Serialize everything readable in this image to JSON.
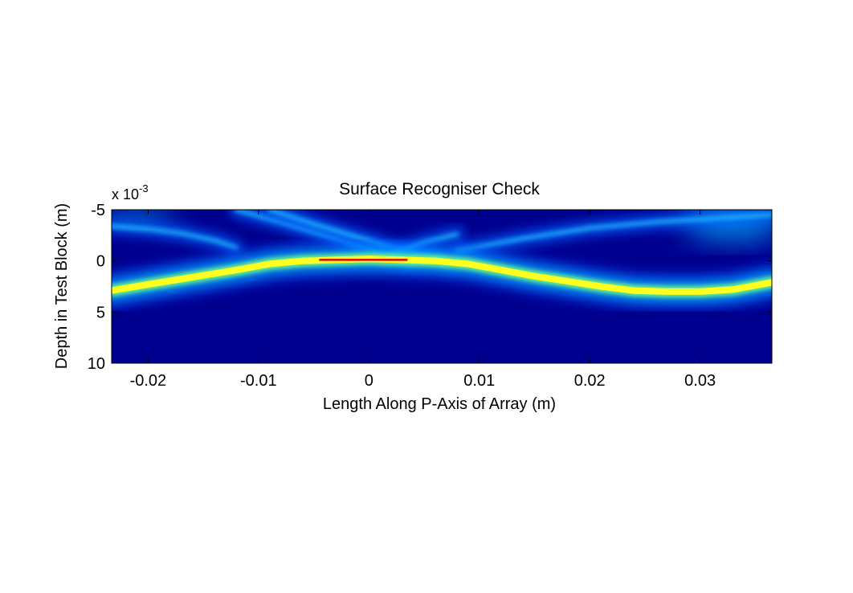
{
  "chart_data": {
    "type": "heatmap",
    "title": "Surface Recogniser Check",
    "xlabel": "Length Along P-Axis of Array (m)",
    "ylabel": "Depth in Test Block (m)",
    "y_multiplier": {
      "base": "x 10",
      "exponent": "-3"
    },
    "xlim": [
      -0.0233,
      0.0365
    ],
    "ylim": [
      -5,
      10
    ],
    "y_reversed": true,
    "colormap": "jet",
    "grid": false,
    "x_ticks": [
      {
        "value": -0.02,
        "label": "-0.02"
      },
      {
        "value": -0.01,
        "label": "-0.01"
      },
      {
        "value": 0,
        "label": "0"
      },
      {
        "value": 0.01,
        "label": "0.01"
      },
      {
        "value": 0.02,
        "label": "0.02"
      },
      {
        "value": 0.03,
        "label": "0.03"
      }
    ],
    "y_ticks": [
      {
        "value": -5,
        "label": "-5"
      },
      {
        "value": 0,
        "label": "0"
      },
      {
        "value": 5,
        "label": "5"
      },
      {
        "value": 10,
        "label": "10"
      }
    ],
    "surface_line": {
      "x": [
        -0.0233,
        -0.02,
        -0.016,
        -0.012,
        -0.009,
        -0.006,
        -0.003,
        0,
        0.003,
        0.006,
        0.009,
        0.012,
        0.015,
        0.018,
        0.021,
        0.024,
        0.027,
        0.03,
        0.033,
        0.0365
      ],
      "y": [
        2.9,
        2.3,
        1.6,
        0.9,
        0.3,
        0.0,
        -0.1,
        -0.2,
        -0.1,
        0.0,
        0.3,
        0.9,
        1.5,
        2.0,
        2.5,
        2.9,
        3.0,
        3.0,
        2.8,
        2.1
      ]
    },
    "detected_segment": {
      "x": [
        -0.0045,
        0.0035
      ],
      "y": [
        -0.1,
        -0.1
      ]
    },
    "artifact_bands": [
      {
        "x": [
          -0.012,
          -0.008,
          -0.004,
          0.0,
          0.004
        ],
        "y": [
          -5.0,
          -3.8,
          -2.5,
          -1.2,
          0.0
        ]
      },
      {
        "x": [
          -0.009,
          -0.005,
          -0.001,
          0.003,
          0.007
        ],
        "y": [
          -5.0,
          -3.6,
          -2.3,
          -1.0,
          0.0
        ]
      },
      {
        "x": [
          0.002,
          0.005,
          0.008
        ],
        "y": [
          -0.6,
          -1.8,
          -2.6
        ]
      },
      {
        "x": [
          -0.0233,
          -0.02,
          -0.017,
          -0.014,
          -0.012
        ],
        "y": [
          -3.4,
          -3.1,
          -2.7,
          -2.0,
          -1.3
        ]
      },
      {
        "x": [
          0.008,
          0.014,
          0.02,
          0.026,
          0.0365
        ],
        "y": [
          -1.0,
          -2.2,
          -3.2,
          -3.8,
          -4.5
        ]
      }
    ],
    "glow_regions": [
      {
        "x": 0.033,
        "y": -3.8,
        "rx": 0.0045,
        "ry": 1.6
      },
      {
        "x": -0.021,
        "y": -4.4,
        "rx": 0.0035,
        "ry": 0.7
      }
    ]
  }
}
